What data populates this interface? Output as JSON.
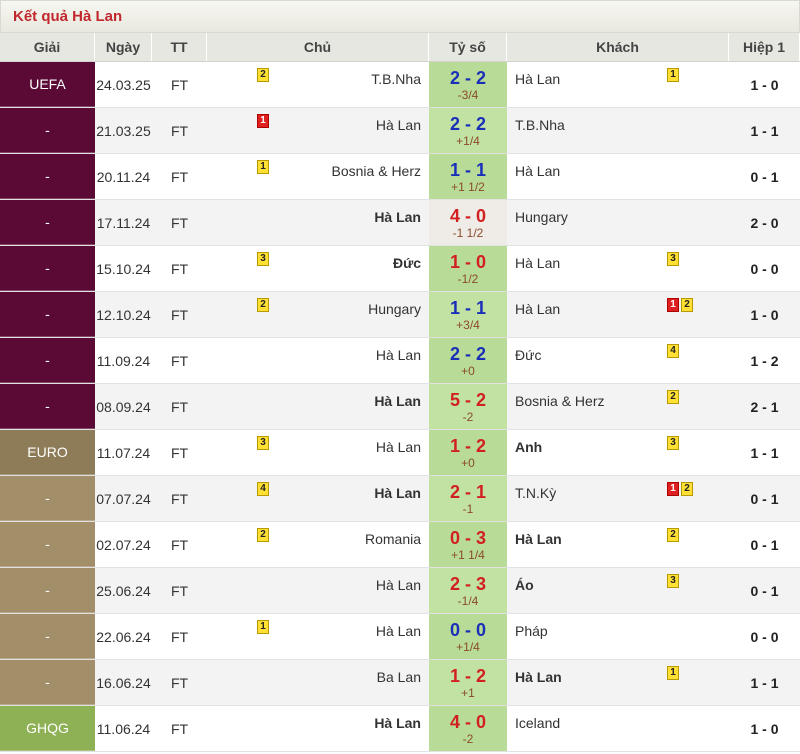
{
  "title": "Kết quả Hà Lan",
  "headers": {
    "league": "Giải",
    "date": "Ngày",
    "status": "TT",
    "home": "Chủ",
    "score": "Tỷ số",
    "away": "Khách",
    "half": "Hiệp 1"
  },
  "colors": {
    "uefa": "#5a0a34",
    "euro": "#a28e69",
    "ghqg": "#8fb155",
    "score_bg": "#b8dc98",
    "draw_score": "#1a2fb8",
    "win_score": "#d22020",
    "title": "#c0282d"
  },
  "rows": [
    {
      "league": "UEFA",
      "league_class": "uefa",
      "date": "24.03.25",
      "status": "FT",
      "home": "T.B.Nha",
      "home_bold": false,
      "home_badges": [
        {
          "t": "y",
          "v": "2"
        }
      ],
      "score": "2 - 2",
      "result": "draw",
      "handicap": "-3/4",
      "away": "Hà Lan",
      "away_bold": false,
      "away_badges": [
        {
          "t": "y",
          "v": "1"
        }
      ],
      "half": "1 - 0"
    },
    {
      "league": "-",
      "league_class": "uefa",
      "date": "21.03.25",
      "status": "FT",
      "home": "Hà Lan",
      "home_bold": false,
      "home_badges": [
        {
          "t": "r",
          "v": "1"
        }
      ],
      "score": "2 - 2",
      "result": "draw",
      "handicap": "+1/4",
      "away": "T.B.Nha",
      "away_bold": false,
      "away_badges": [],
      "half": "1 - 1"
    },
    {
      "league": "-",
      "league_class": "uefa",
      "date": "20.11.24",
      "status": "FT",
      "home": "Bosnia & Herz",
      "home_bold": false,
      "home_badges": [
        {
          "t": "y",
          "v": "1"
        }
      ],
      "score": "1 - 1",
      "result": "draw",
      "handicap": "+1 1/2",
      "away": "Hà Lan",
      "away_bold": false,
      "away_badges": [],
      "half": "0 - 1"
    },
    {
      "league": "-",
      "league_class": "uefa",
      "date": "17.11.24",
      "status": "FT",
      "home": "Hà Lan",
      "home_bold": true,
      "home_badges": [],
      "score": "4 - 0",
      "result": "win",
      "handicap": "-1 1/2",
      "away": "Hungary",
      "away_bold": false,
      "away_badges": [],
      "half": "2 - 0",
      "lossbg": true
    },
    {
      "league": "-",
      "league_class": "uefa",
      "date": "15.10.24",
      "status": "FT",
      "home": "Đức",
      "home_bold": true,
      "home_badges": [
        {
          "t": "y",
          "v": "3"
        }
      ],
      "score": "1 - 0",
      "result": "win",
      "handicap": "-1/2",
      "away": "Hà Lan",
      "away_bold": false,
      "away_badges": [
        {
          "t": "y",
          "v": "3"
        }
      ],
      "half": "0 - 0"
    },
    {
      "league": "-",
      "league_class": "uefa",
      "date": "12.10.24",
      "status": "FT",
      "home": "Hungary",
      "home_bold": false,
      "home_badges": [
        {
          "t": "y",
          "v": "2"
        }
      ],
      "score": "1 - 1",
      "result": "draw",
      "handicap": "+3/4",
      "away": "Hà Lan",
      "away_bold": false,
      "away_badges": [
        {
          "t": "r",
          "v": "1"
        },
        {
          "t": "y",
          "v": "2"
        }
      ],
      "half": "1 - 0"
    },
    {
      "league": "-",
      "league_class": "uefa",
      "date": "11.09.24",
      "status": "FT",
      "home": "Hà Lan",
      "home_bold": false,
      "home_badges": [],
      "score": "2 - 2",
      "result": "draw",
      "handicap": "+0",
      "away": "Đức",
      "away_bold": false,
      "away_badges": [
        {
          "t": "y",
          "v": "4"
        }
      ],
      "half": "1 - 2"
    },
    {
      "league": "-",
      "league_class": "uefa",
      "date": "08.09.24",
      "status": "FT",
      "home": "Hà Lan",
      "home_bold": true,
      "home_badges": [],
      "score": "5 - 2",
      "result": "win",
      "handicap": "-2",
      "away": "Bosnia & Herz",
      "away_bold": false,
      "away_badges": [
        {
          "t": "y",
          "v": "2"
        }
      ],
      "half": "2 - 1"
    },
    {
      "league": "EURO",
      "league_class": "euro first",
      "date": "11.07.24",
      "status": "FT",
      "home": "Hà Lan",
      "home_bold": false,
      "home_badges": [
        {
          "t": "y",
          "v": "3"
        }
      ],
      "score": "1 - 2",
      "result": "loss",
      "handicap": "+0",
      "away": "Anh",
      "away_bold": true,
      "away_badges": [
        {
          "t": "y",
          "v": "3"
        }
      ],
      "half": "1 - 1"
    },
    {
      "league": "-",
      "league_class": "euro",
      "date": "07.07.24",
      "status": "FT",
      "home": "Hà Lan",
      "home_bold": true,
      "home_badges": [
        {
          "t": "y",
          "v": "4"
        }
      ],
      "score": "2 - 1",
      "result": "win",
      "handicap": "-1",
      "away": "T.N.Kỳ",
      "away_bold": false,
      "away_badges": [
        {
          "t": "r",
          "v": "1"
        },
        {
          "t": "y",
          "v": "2"
        }
      ],
      "half": "0 - 1"
    },
    {
      "league": "-",
      "league_class": "euro",
      "date": "02.07.24",
      "status": "FT",
      "home": "Romania",
      "home_bold": false,
      "home_badges": [
        {
          "t": "y",
          "v": "2"
        }
      ],
      "score": "0 - 3",
      "result": "loss",
      "handicap": "+1 1/4",
      "away": "Hà Lan",
      "away_bold": true,
      "away_badges": [
        {
          "t": "y",
          "v": "2"
        }
      ],
      "half": "0 - 1"
    },
    {
      "league": "-",
      "league_class": "euro",
      "date": "25.06.24",
      "status": "FT",
      "home": "Hà Lan",
      "home_bold": false,
      "home_badges": [],
      "score": "2 - 3",
      "result": "loss",
      "handicap": "-1/4",
      "away": "Áo",
      "away_bold": true,
      "away_badges": [
        {
          "t": "y",
          "v": "3"
        }
      ],
      "half": "0 - 1"
    },
    {
      "league": "-",
      "league_class": "euro",
      "date": "22.06.24",
      "status": "FT",
      "home": "Hà Lan",
      "home_bold": false,
      "home_badges": [
        {
          "t": "y",
          "v": "1"
        }
      ],
      "score": "0 - 0",
      "result": "draw",
      "handicap": "+1/4",
      "away": "Pháp",
      "away_bold": false,
      "away_badges": [],
      "half": "0 - 0"
    },
    {
      "league": "-",
      "league_class": "euro",
      "date": "16.06.24",
      "status": "FT",
      "home": "Ba Lan",
      "home_bold": false,
      "home_badges": [],
      "score": "1 - 2",
      "result": "loss",
      "handicap": "+1",
      "away": "Hà Lan",
      "away_bold": true,
      "away_badges": [
        {
          "t": "y",
          "v": "1"
        }
      ],
      "half": "1 - 1"
    },
    {
      "league": "GHQG",
      "league_class": "ghqg",
      "date": "11.06.24",
      "status": "FT",
      "home": "Hà Lan",
      "home_bold": true,
      "home_badges": [],
      "score": "4 - 0",
      "result": "win",
      "handicap": "-2",
      "away": "Iceland",
      "away_bold": false,
      "away_badges": [],
      "half": "1 - 0"
    }
  ]
}
